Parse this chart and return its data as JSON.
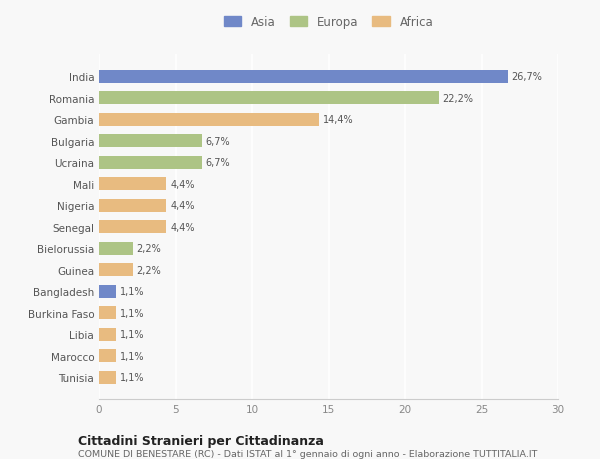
{
  "countries": [
    "India",
    "Romania",
    "Gambia",
    "Bulgaria",
    "Ucraina",
    "Mali",
    "Nigeria",
    "Senegal",
    "Bielorussia",
    "Guinea",
    "Bangladesh",
    "Burkina Faso",
    "Libia",
    "Marocco",
    "Tunisia"
  ],
  "values": [
    26.7,
    22.2,
    14.4,
    6.7,
    6.7,
    4.4,
    4.4,
    4.4,
    2.2,
    2.2,
    1.1,
    1.1,
    1.1,
    1.1,
    1.1
  ],
  "labels": [
    "26,7%",
    "22,2%",
    "14,4%",
    "6,7%",
    "6,7%",
    "4,4%",
    "4,4%",
    "4,4%",
    "2,2%",
    "2,2%",
    "1,1%",
    "1,1%",
    "1,1%",
    "1,1%",
    "1,1%"
  ],
  "continents": [
    "Asia",
    "Europa",
    "Africa",
    "Europa",
    "Europa",
    "Africa",
    "Africa",
    "Africa",
    "Europa",
    "Africa",
    "Asia",
    "Africa",
    "Africa",
    "Africa",
    "Africa"
  ],
  "colors": {
    "Asia": "#7088c8",
    "Europa": "#adc485",
    "Africa": "#e8bb80"
  },
  "xlim": [
    0,
    30
  ],
  "xticks": [
    0,
    5,
    10,
    15,
    20,
    25,
    30
  ],
  "title": "Cittadini Stranieri per Cittadinanza",
  "subtitle": "COMUNE DI BENESTARE (RC) - Dati ISTAT al 1° gennaio di ogni anno - Elaborazione TUTTITALIA.IT",
  "bg_color": "#f8f8f8",
  "grid_color": "#ffffff",
  "bar_height": 0.6
}
